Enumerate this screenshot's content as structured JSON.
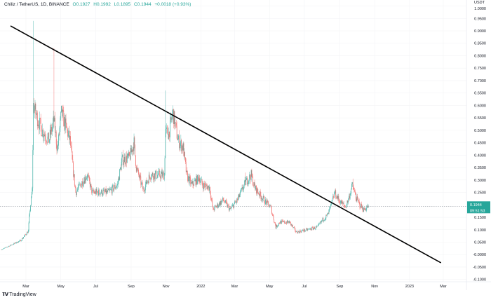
{
  "header": {
    "symbol": "Chiliz / TetherUS, 1D, BINANCE",
    "open": "O0.1927",
    "high": "H0.1992",
    "low": "L0.1895",
    "close": "C0.1944",
    "change": "+0.0018 (+0.93%)"
  },
  "footer": {
    "brand": "TradingView",
    "logo": "TV"
  },
  "colors": {
    "up": "#26a69a",
    "down": "#ef5350",
    "trendline": "#000000",
    "price_label_bg": "#26a69a"
  },
  "chart_data": {
    "type": "candlestick",
    "title": "Chiliz / TetherUS, 1D, BINANCE",
    "currency_label": "USDT",
    "time_unit": "days since 2021-01-01",
    "ylim": [
      -0.1,
      1.0
    ],
    "y_ticks": [
      "1.0000",
      "0.9500",
      "0.9000",
      "0.8500",
      "0.8000",
      "0.7500",
      "0.7000",
      "0.6500",
      "0.6000",
      "0.5500",
      "0.5000",
      "0.4500",
      "0.4000",
      "0.3500",
      "0.3000",
      "0.2500",
      "0.1500",
      "0.1000",
      "0.0500",
      "-0.0000",
      "-0.0500",
      "-0.1000"
    ],
    "y_tick_values": [
      1.0,
      0.95,
      0.9,
      0.85,
      0.8,
      0.75,
      0.7,
      0.65,
      0.6,
      0.55,
      0.5,
      0.45,
      0.4,
      0.35,
      0.3,
      0.25,
      0.15,
      0.1,
      0.05,
      0.0,
      -0.05,
      -0.1
    ],
    "x_ticks": [
      {
        "label": "Mar",
        "t": 59
      },
      {
        "label": "May",
        "t": 120
      },
      {
        "label": "Jul",
        "t": 181
      },
      {
        "label": "Sep",
        "t": 243
      },
      {
        "label": "Nov",
        "t": 304
      },
      {
        "label": "2022",
        "t": 365
      },
      {
        "label": "Mar",
        "t": 424
      },
      {
        "label": "May",
        "t": 485
      },
      {
        "label": "Jul",
        "t": 546
      },
      {
        "label": "Sep",
        "t": 608
      },
      {
        "label": "Nov",
        "t": 669
      },
      {
        "label": "2023",
        "t": 730
      },
      {
        "label": "Mar",
        "t": 789
      }
    ],
    "xlim": [
      14,
      830
    ],
    "close_path": [
      [
        16,
        0.02
      ],
      [
        50,
        0.057
      ],
      [
        63,
        0.094
      ],
      [
        66,
        0.18
      ],
      [
        70,
        0.26
      ],
      [
        72,
        0.6
      ],
      [
        77,
        0.56
      ],
      [
        87,
        0.5
      ],
      [
        99,
        0.46
      ],
      [
        108,
        0.54
      ],
      [
        114,
        0.42
      ],
      [
        121,
        0.57
      ],
      [
        136,
        0.46
      ],
      [
        142,
        0.33
      ],
      [
        146,
        0.25
      ],
      [
        154,
        0.28
      ],
      [
        166,
        0.32
      ],
      [
        175,
        0.25
      ],
      [
        191,
        0.25
      ],
      [
        203,
        0.25
      ],
      [
        219,
        0.28
      ],
      [
        227,
        0.38
      ],
      [
        240,
        0.39
      ],
      [
        248,
        0.45
      ],
      [
        252,
        0.35
      ],
      [
        264,
        0.26
      ],
      [
        276,
        0.32
      ],
      [
        288,
        0.32
      ],
      [
        301,
        0.32
      ],
      [
        303,
        0.49
      ],
      [
        309,
        0.49
      ],
      [
        316,
        0.57
      ],
      [
        325,
        0.46
      ],
      [
        334,
        0.43
      ],
      [
        340,
        0.32
      ],
      [
        349,
        0.28
      ],
      [
        362,
        0.31
      ],
      [
        368,
        0.28
      ],
      [
        380,
        0.27
      ],
      [
        386,
        0.18
      ],
      [
        404,
        0.22
      ],
      [
        416,
        0.18
      ],
      [
        429,
        0.22
      ],
      [
        443,
        0.29
      ],
      [
        453,
        0.32
      ],
      [
        459,
        0.27
      ],
      [
        475,
        0.22
      ],
      [
        487,
        0.19
      ],
      [
        496,
        0.11
      ],
      [
        502,
        0.13
      ],
      [
        520,
        0.13
      ],
      [
        532,
        0.09
      ],
      [
        551,
        0.1
      ],
      [
        569,
        0.11
      ],
      [
        578,
        0.14
      ],
      [
        587,
        0.16
      ],
      [
        593,
        0.2
      ],
      [
        599,
        0.25
      ],
      [
        606,
        0.22
      ],
      [
        618,
        0.19
      ],
      [
        624,
        0.23
      ],
      [
        630,
        0.28
      ],
      [
        636,
        0.23
      ],
      [
        643,
        0.2
      ],
      [
        650,
        0.18
      ],
      [
        658,
        0.1944
      ]
    ],
    "spike_highs": [
      [
        72,
        0.94
      ],
      [
        108,
        0.83
      ],
      [
        303,
        0.66
      ],
      [
        316,
        0.6
      ],
      [
        443,
        0.33
      ],
      [
        630,
        0.29
      ]
    ],
    "trendline": {
      "start": [
        32,
        0.92
      ],
      "end": [
        785,
        -0.033
      ]
    },
    "last_price": {
      "value": 0.1944,
      "label": "0.1944",
      "countdown": "09:51:53"
    }
  }
}
